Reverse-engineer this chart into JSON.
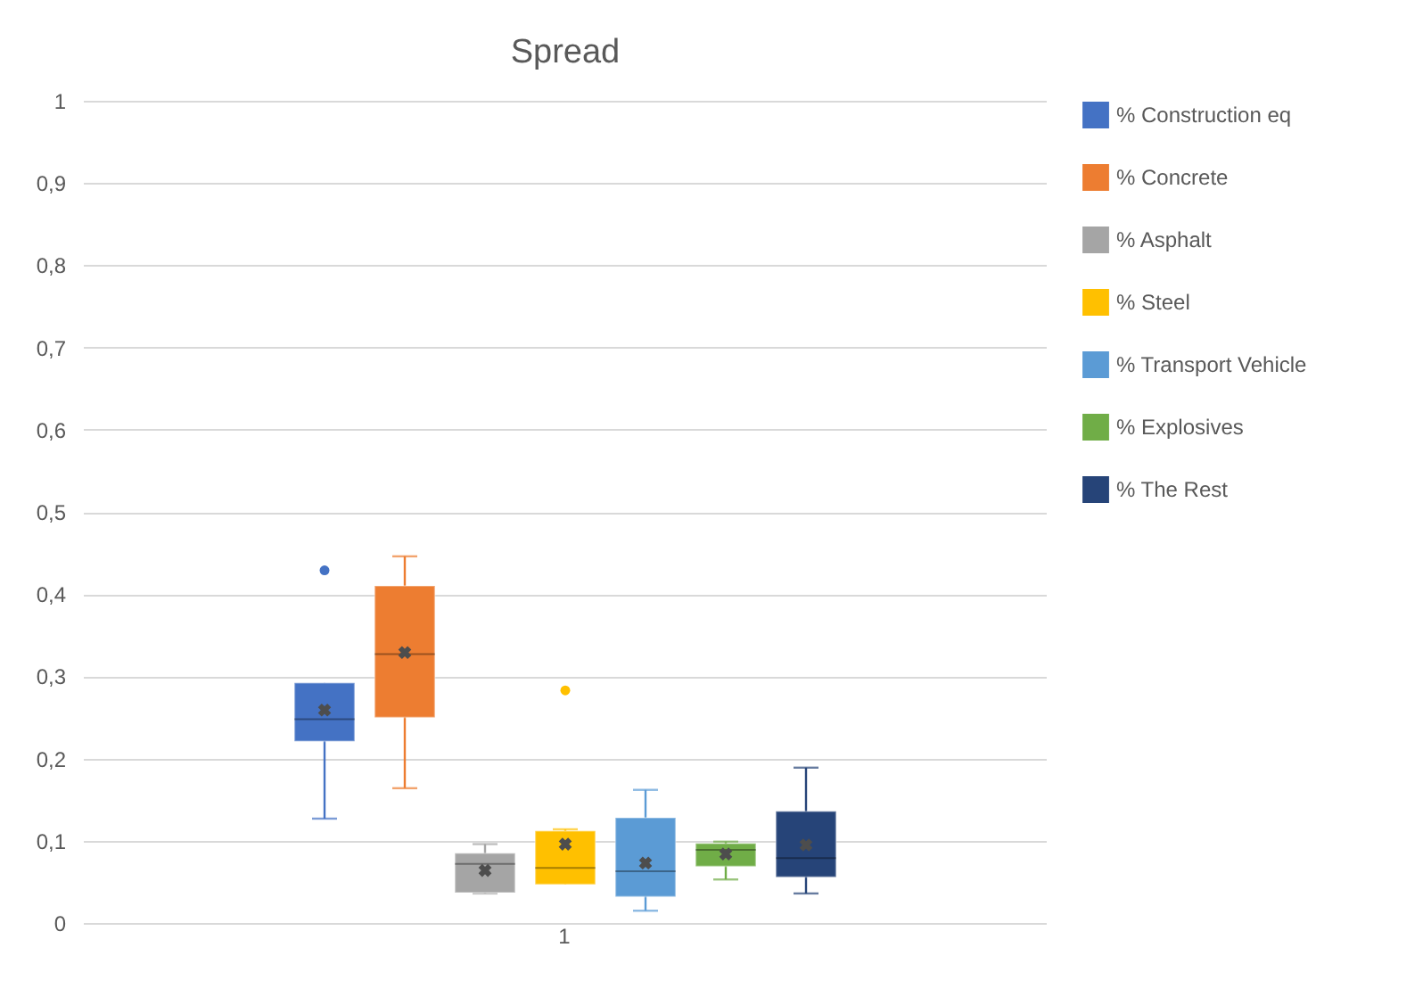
{
  "chart_data": {
    "type": "box",
    "title": "Spread",
    "categories": [
      "1"
    ],
    "series": [
      {
        "name": "% Construction eq",
        "color": "#4472c4",
        "boxes": [
          {
            "low": 0.128,
            "q1": 0.222,
            "median": 0.249,
            "q3": 0.293,
            "high": 0.293,
            "mean": 0.26,
            "outliers": [
              0.43
            ]
          }
        ]
      },
      {
        "name": "% Concrete",
        "color": "#ed7d31",
        "boxes": [
          {
            "low": 0.165,
            "q1": 0.251,
            "median": 0.328,
            "q3": 0.411,
            "high": 0.447,
            "mean": 0.33
          }
        ]
      },
      {
        "name": "% Asphalt",
        "color": "#a5a5a5",
        "boxes": [
          {
            "low": 0.037,
            "q1": 0.038,
            "median": 0.073,
            "q3": 0.086,
            "high": 0.097,
            "mean": 0.065
          }
        ]
      },
      {
        "name": "% Steel",
        "color": "#ffc000",
        "boxes": [
          {
            "low": 0.048,
            "q1": 0.048,
            "median": 0.068,
            "q3": 0.113,
            "high": 0.115,
            "mean": 0.097,
            "outliers": [
              0.284
            ]
          }
        ]
      },
      {
        "name": "% Transport Vehicle",
        "color": "#5b9bd5",
        "boxes": [
          {
            "low": 0.016,
            "q1": 0.033,
            "median": 0.064,
            "q3": 0.129,
            "high": 0.163,
            "mean": 0.074
          }
        ]
      },
      {
        "name": "% Explosives",
        "color": "#70ad47",
        "boxes": [
          {
            "low": 0.054,
            "q1": 0.07,
            "median": 0.09,
            "q3": 0.098,
            "high": 0.1,
            "mean": 0.085
          }
        ]
      },
      {
        "name": " % The Rest",
        "color": "#264478",
        "boxes": [
          {
            "low": 0.037,
            "q1": 0.057,
            "median": 0.08,
            "q3": 0.137,
            "high": 0.19,
            "mean": 0.096
          }
        ]
      }
    ],
    "ylim": [
      0,
      1
    ],
    "yticks": [
      {
        "value": 0,
        "label": "0"
      },
      {
        "value": 0.1,
        "label": "0,1"
      },
      {
        "value": 0.2,
        "label": "0,2"
      },
      {
        "value": 0.3,
        "label": "0,3"
      },
      {
        "value": 0.4,
        "label": "0,4"
      },
      {
        "value": 0.5,
        "label": "0,5"
      },
      {
        "value": 0.6,
        "label": "0,6"
      },
      {
        "value": 0.7,
        "label": "0,7"
      },
      {
        "value": 0.8,
        "label": "0,8"
      },
      {
        "value": 0.9,
        "label": "0,9"
      },
      {
        "value": 1,
        "label": "1"
      }
    ],
    "grid": "y",
    "legend": "right"
  }
}
